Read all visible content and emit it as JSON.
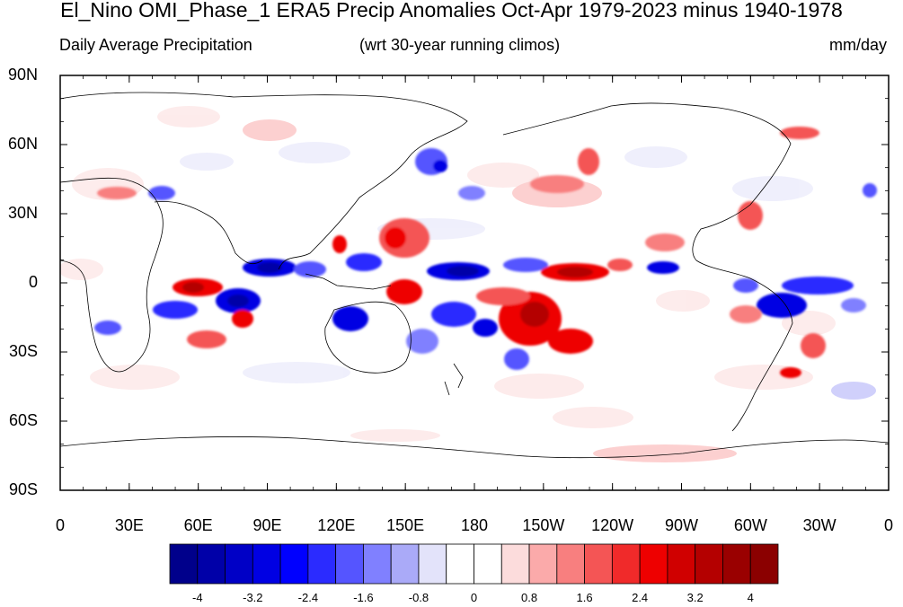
{
  "title": "El_Nino OMI_Phase_1 ERA5 Precip Anomalies Oct-Apr 1979-2023 minus 1940-1978",
  "subtitle_left": "Daily Average Precipitation",
  "subtitle_center": "(wrt 30-year running climos)",
  "subtitle_right": "mm/day",
  "lat_labels": [
    "90N",
    "60N",
    "30N",
    "0",
    "30S",
    "60S",
    "90S"
  ],
  "lon_labels": [
    "0",
    "30E",
    "60E",
    "90E",
    "120E",
    "150E",
    "180",
    "150W",
    "120W",
    "90W",
    "60W",
    "30W",
    "0"
  ],
  "colorbar": {
    "colors": [
      "#00008b",
      "#0000a8",
      "#0000c6",
      "#0000e3",
      "#0000ff",
      "#2b2bff",
      "#5555ff",
      "#8080ff",
      "#aaaaf8",
      "#e3e3fa",
      "#ffffff",
      "#ffffff",
      "#fcdcdc",
      "#fbaaaa",
      "#f87f7f",
      "#f45555",
      "#f02a2a",
      "#ee0000",
      "#d00000",
      "#b40000",
      "#9a0000",
      "#8b0000"
    ],
    "labels": [
      "-4",
      "-3.2",
      "-2.4",
      "-1.6",
      "-0.8",
      "0",
      "0.8",
      "1.6",
      "2.4",
      "3.2",
      "4"
    ]
  },
  "colors": {
    "positive": "#e41a1c",
    "negative": "#1a1ad8",
    "coast": "#000000"
  }
}
